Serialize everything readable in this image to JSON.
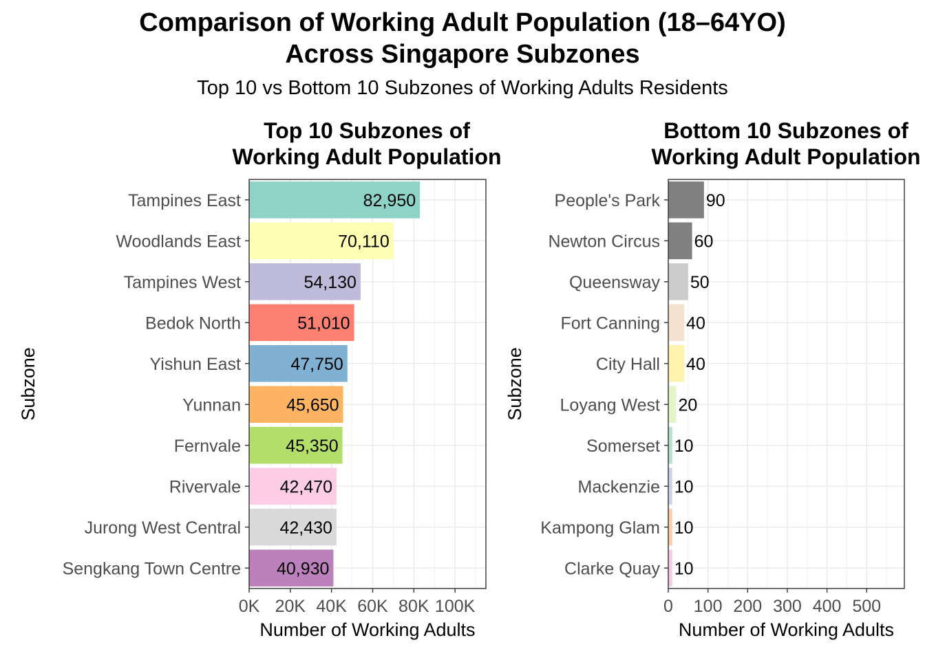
{
  "title_line1": "Comparison of Working Adult Population (18–64YO)",
  "title_line2": "Across Singapore Subzones",
  "subtitle": "Top 10 vs Bottom 10 Subzones of Working Adults Residents",
  "chart_data": [
    {
      "type": "bar",
      "orientation": "horizontal",
      "title": "Top 10 Subzones of\nWorking Adult Population",
      "xlabel": "Number of Working Adults",
      "ylabel": "Subzone",
      "xlim": [
        0,
        115000
      ],
      "xticks": [
        0,
        20000,
        40000,
        60000,
        80000,
        100000
      ],
      "xtick_labels": [
        "0K",
        "20K",
        "40K",
        "60K",
        "80K",
        "100K"
      ],
      "grid": true,
      "categories": [
        "Tampines East",
        "Woodlands East",
        "Tampines West",
        "Bedok North",
        "Yishun East",
        "Yunnan",
        "Fernvale",
        "Rivervale",
        "Jurong West Central",
        "Sengkang Town Centre"
      ],
      "values": [
        82950,
        70110,
        54130,
        51010,
        47750,
        45650,
        45350,
        42470,
        42430,
        40930
      ],
      "value_labels": [
        "82,950",
        "70,110",
        "54,130",
        "51,010",
        "47,750",
        "45,650",
        "45,350",
        "42,470",
        "42,430",
        "40,930"
      ],
      "label_position": "inside-end",
      "colors": [
        "#8DD3C7",
        "#FFFFB3",
        "#BEBADA",
        "#FB8072",
        "#80B1D3",
        "#FDB462",
        "#B3DE69",
        "#FCCDE5",
        "#D9D9D9",
        "#BC80BD"
      ]
    },
    {
      "type": "bar",
      "orientation": "horizontal",
      "title": "Bottom 10 Subzones of\nWorking Adult Population",
      "xlabel": "Number of Working Adults",
      "ylabel": "Subzone",
      "xlim": [
        0,
        595
      ],
      "xticks": [
        0,
        100,
        200,
        300,
        400,
        500
      ],
      "xtick_labels": [
        "0",
        "100",
        "200",
        "300",
        "400",
        "500"
      ],
      "grid": true,
      "categories": [
        "People's Park",
        "Newton Circus",
        "Queensway",
        "Fort Canning",
        "City Hall",
        "Loyang West",
        "Somerset",
        "Mackenzie",
        "Kampong Glam",
        "Clarke Quay"
      ],
      "values": [
        90,
        60,
        50,
        40,
        40,
        20,
        10,
        10,
        10,
        10
      ],
      "value_labels": [
        "90",
        "60",
        "50",
        "40",
        "40",
        "20",
        "10",
        "10",
        "10",
        "10"
      ],
      "label_position": "outside-end",
      "colors": [
        "#808080",
        "#808080",
        "#CCCCCC",
        "#F2E2CE",
        "#FFF2AE",
        "#E6F5C9",
        "#B3E2CD",
        "#CBD5E8",
        "#FDCDAC",
        "#F4CAE4"
      ]
    }
  ]
}
